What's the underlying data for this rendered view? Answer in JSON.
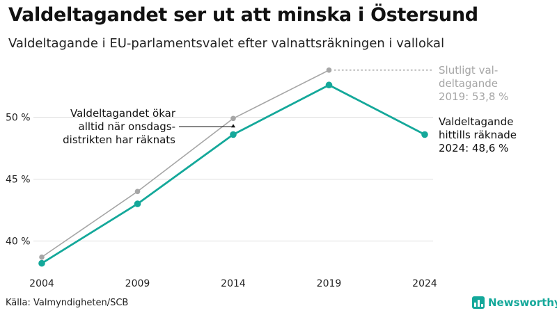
{
  "header": {
    "title": "Valdeltagandet ser ut att minska i Östersund",
    "subtitle": "Valdeltagande i EU-parlamentsvalet efter valnattsräkningen i vallokal"
  },
  "footer": {
    "source": "Källa: Valmyndigheten/SCB",
    "brand": "Newsworthy"
  },
  "colors": {
    "preliminary": "#14a89a",
    "final": "#a6a6a6",
    "grid": "#dddddd"
  },
  "chart_data": {
    "type": "line",
    "x": [
      "2004",
      "2009",
      "2014",
      "2019",
      "2024"
    ],
    "ylim": [
      37.5,
      55
    ],
    "y_ticks": [
      40,
      45,
      50
    ],
    "y_tick_labels": [
      "40 %",
      "45 %",
      "50 %"
    ],
    "grid": true,
    "series": [
      {
        "key": "final",
        "color": "#a6a6a6",
        "values": [
          38.7,
          44.0,
          49.9,
          53.8,
          null
        ]
      },
      {
        "key": "preliminary",
        "color": "#14a89a",
        "values": [
          38.2,
          43.0,
          48.6,
          52.6,
          48.6
        ]
      }
    ],
    "annotations": {
      "final_label": [
        "Slutligt val-",
        "deltagande",
        "2019: 53,8 %"
      ],
      "preliminary_label": [
        "Valdeltagande",
        "hittills räknade",
        "2024: 48,6 %"
      ],
      "note": [
        "Valdeltagandet ökar",
        "alltid när onsdags-",
        "distrikten har räknats"
      ]
    }
  }
}
